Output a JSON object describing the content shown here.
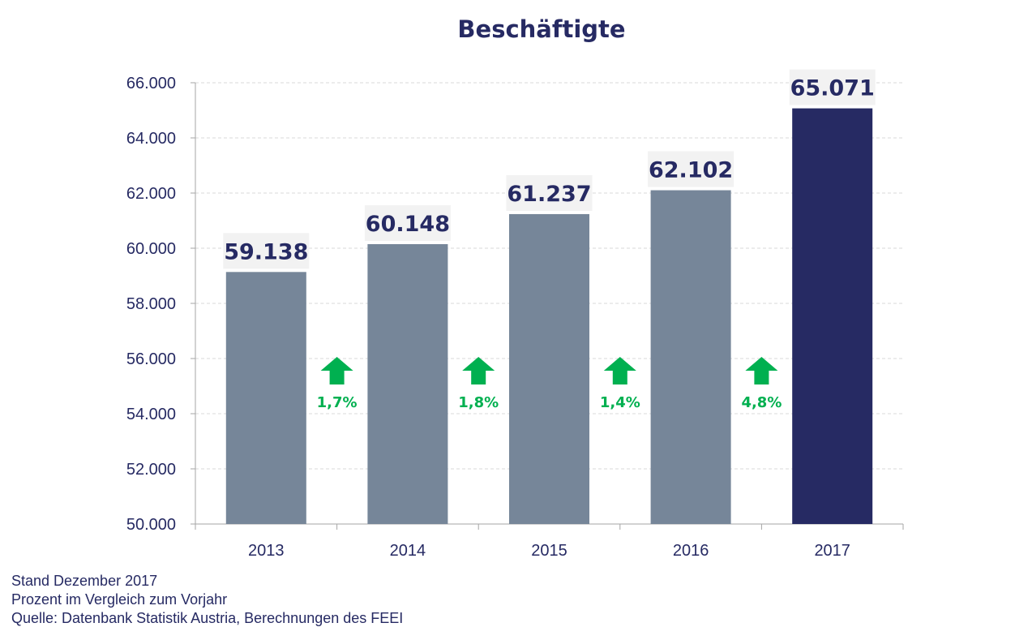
{
  "chart_data": {
    "type": "bar",
    "title": "Beschäftigte",
    "categories": [
      "2013",
      "2014",
      "2015",
      "2016",
      "2017"
    ],
    "values": [
      59138,
      60148,
      61237,
      62102,
      65071
    ],
    "value_labels": [
      "59.138",
      "60.148",
      "61.237",
      "62.102",
      "65.071"
    ],
    "highlight_index": 4,
    "ylim": [
      50000,
      66000
    ],
    "yticks": [
      50000,
      52000,
      54000,
      56000,
      58000,
      60000,
      62000,
      64000,
      66000
    ],
    "ytick_labels": [
      "50.000",
      "52.000",
      "54.000",
      "56.000",
      "58.000",
      "60.000",
      "62.000",
      "64.000",
      "66.000"
    ],
    "grid": true,
    "xlabel": "",
    "ylabel": "",
    "annotations": [
      {
        "between": [
          "2013",
          "2014"
        ],
        "text": "1,7%",
        "direction": "up"
      },
      {
        "between": [
          "2014",
          "2015"
        ],
        "text": "1,8%",
        "direction": "up"
      },
      {
        "between": [
          "2015",
          "2016"
        ],
        "text": "1,4%",
        "direction": "up"
      },
      {
        "between": [
          "2016",
          "2017"
        ],
        "text": "4,8%",
        "direction": "up"
      }
    ]
  },
  "colors": {
    "bar": "#768699",
    "bar_highlight": "#262a63",
    "label_bg": "#f2f2f2",
    "text": "#262a63",
    "arrow": "#00b050",
    "grid": "#d9d9d9",
    "axis": "#a6a6a6"
  },
  "footer": {
    "line1": "Stand Dezember 2017",
    "line2": "Prozent im Vergleich zum  Vorjahr",
    "line3": "Quelle: Datenbank Statistik Austria, Berechnungen des FEEI"
  }
}
